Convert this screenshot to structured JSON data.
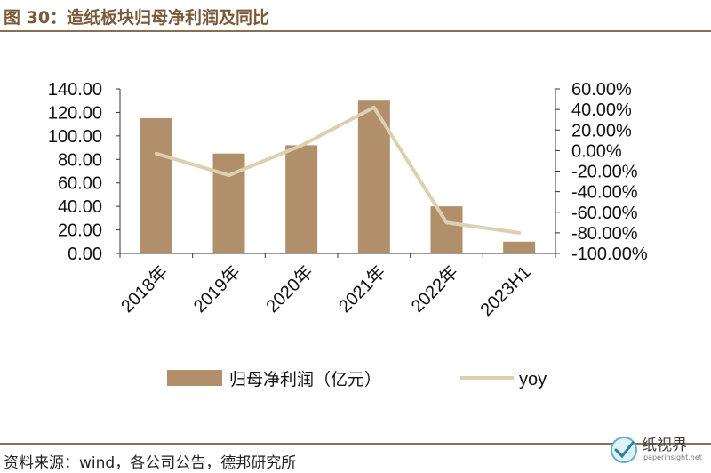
{
  "figure": {
    "title": "图 30：造纸板块归母净利润及同比",
    "source": "资料来源：wind，各公司公告，德邦研究所"
  },
  "watermark": {
    "name": "纸视界",
    "url": "paperinsight.net"
  },
  "colors": {
    "bar": "#b08f6a",
    "line": "#ddd0b0",
    "axis": "#333333",
    "title": "#7a5a3a",
    "rule": "#8b6d4f"
  },
  "chart_data": {
    "type": "bar",
    "categories": [
      "2018年",
      "2019年",
      "2020年",
      "2021年",
      "2022年",
      "2023H1"
    ],
    "series": [
      {
        "name": "归母净利润（亿元）",
        "type": "bar",
        "axis": "left",
        "values": [
          115,
          85,
          92,
          130,
          40,
          10
        ]
      },
      {
        "name": "yoy",
        "type": "line",
        "axis": "right",
        "values": [
          -3,
          -24,
          5,
          42,
          -70,
          -80
        ]
      }
    ],
    "y_left": {
      "min": 0,
      "max": 140,
      "step": 20,
      "decimals": 2,
      "ticks": [
        "0.00",
        "20.00",
        "40.00",
        "60.00",
        "80.00",
        "100.00",
        "120.00",
        "140.00"
      ]
    },
    "y_right": {
      "min": -100,
      "max": 60,
      "step": 20,
      "suffix": "%",
      "ticks": [
        "-100.00%",
        "-80.00%",
        "-60.00%",
        "-40.00%",
        "-20.00%",
        "0.00%",
        "20.00%",
        "40.00%",
        "60.00%"
      ]
    },
    "legend_position": "bottom",
    "grid": false
  }
}
